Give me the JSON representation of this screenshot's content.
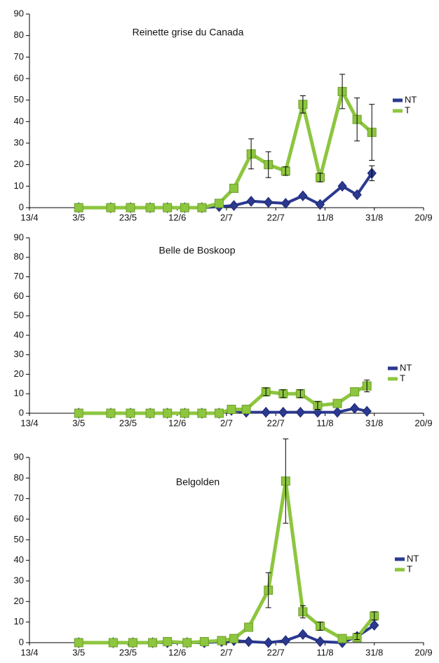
{
  "chart_data": [
    {
      "type": "line",
      "title": "Reinette grise du Canada",
      "x": [
        "3/5",
        "16/5",
        "24/5",
        "1/6",
        "8/6",
        "15/6",
        "22/6",
        "29/6",
        "5/7",
        "12/7",
        "19/7",
        "26/7",
        "2/8",
        "9/8",
        "18/8",
        "24/8",
        "30/8"
      ],
      "series": [
        {
          "name": "NT",
          "color": "#2b3990",
          "values": [
            0,
            0,
            0,
            0,
            0,
            0,
            0,
            0.5,
            1,
            3,
            2.5,
            2,
            5.5,
            1.5,
            10,
            6,
            16
          ],
          "errors": [
            null,
            null,
            null,
            null,
            null,
            null,
            null,
            null,
            null,
            null,
            null,
            null,
            null,
            null,
            null,
            null,
            3.5
          ]
        },
        {
          "name": "T",
          "color": "#8dc63f",
          "values": [
            0,
            0,
            0,
            0,
            0,
            0,
            0,
            2,
            9,
            25,
            20,
            17,
            48,
            14,
            54,
            41,
            35
          ],
          "errors": [
            null,
            null,
            null,
            null,
            null,
            null,
            null,
            null,
            null,
            7,
            6,
            2,
            4,
            2,
            8,
            10,
            13
          ]
        }
      ],
      "xlim": [
        "13/4",
        "20/9"
      ],
      "xticks": [
        "13/4",
        "3/5",
        "23/5",
        "12/6",
        "2/7",
        "22/7",
        "11/8",
        "31/8",
        "20/9"
      ],
      "ylim": [
        0,
        90
      ],
      "yticks": [
        0,
        10,
        20,
        30,
        40,
        50,
        60,
        70,
        80,
        90
      ],
      "legend": "right"
    },
    {
      "type": "line",
      "title": "Belle de Boskoop",
      "x": [
        "3/5",
        "16/5",
        "24/5",
        "1/6",
        "8/6",
        "15/6",
        "22/6",
        "29/6",
        "4/7",
        "10/7",
        "18/7",
        "25/7",
        "1/8",
        "8/8",
        "16/8",
        "23/8",
        "28/8"
      ],
      "series": [
        {
          "name": "NT",
          "color": "#2b3990",
          "values": [
            0,
            0,
            0,
            0,
            0,
            0,
            0,
            0,
            1.5,
            0.5,
            0.5,
            0.5,
            0.5,
            0.5,
            0.5,
            2.5,
            1
          ],
          "errors": [
            null,
            null,
            null,
            null,
            null,
            null,
            null,
            null,
            null,
            null,
            null,
            null,
            null,
            null,
            null,
            null,
            null
          ]
        },
        {
          "name": "T",
          "color": "#8dc63f",
          "values": [
            0,
            0,
            0,
            0,
            0,
            0,
            0,
            0,
            2,
            2,
            11,
            10,
            10,
            4,
            5,
            11,
            14
          ],
          "errors": [
            null,
            null,
            null,
            null,
            null,
            null,
            null,
            null,
            null,
            null,
            2,
            2,
            2,
            2,
            null,
            null,
            3
          ]
        }
      ],
      "xlim": [
        "13/4",
        "20/9"
      ],
      "xticks": [
        "13/4",
        "3/5",
        "23/5",
        "12/6",
        "2/7",
        "22/7",
        "11/8",
        "31/8",
        "20/9"
      ],
      "ylim": [
        0,
        90
      ],
      "yticks": [
        0,
        10,
        20,
        30,
        40,
        50,
        60,
        70,
        80,
        90
      ],
      "legend": "right"
    },
    {
      "type": "line",
      "title": "Belgolden",
      "x": [
        "3/5",
        "17/5",
        "25/5",
        "2/6",
        "8/6",
        "16/6",
        "23/6",
        "30/6",
        "5/7",
        "11/7",
        "19/7",
        "26/7",
        "2/8",
        "9/8",
        "18/8",
        "24/8",
        "31/8"
      ],
      "series": [
        {
          "name": "NT",
          "color": "#2b3990",
          "values": [
            0,
            0,
            0,
            0,
            0,
            0,
            0,
            0.5,
            1,
            0.5,
            0,
            1,
            4,
            0.5,
            0,
            3,
            8.5
          ],
          "errors": [
            null,
            null,
            null,
            null,
            null,
            null,
            null,
            null,
            null,
            null,
            null,
            null,
            null,
            null,
            null,
            1.5,
            null
          ]
        },
        {
          "name": "T",
          "color": "#8dc63f",
          "values": [
            0,
            0,
            0,
            0,
            0.5,
            0,
            0.5,
            1,
            2,
            7.5,
            25.5,
            78.5,
            15,
            8,
            2,
            2.5,
            13
          ],
          "errors": [
            null,
            null,
            null,
            null,
            null,
            null,
            null,
            null,
            null,
            null,
            8.5,
            20.5,
            3,
            2,
            null,
            null,
            2
          ]
        }
      ],
      "xlim": [
        "13/4",
        "20/9"
      ],
      "xticks": [
        "13/4",
        "3/5",
        "23/5",
        "12/6",
        "2/7",
        "22/7",
        "11/8",
        "31/8",
        "20/9"
      ],
      "ylim": [
        0,
        90
      ],
      "yticks": [
        0,
        10,
        20,
        30,
        40,
        50,
        60,
        70,
        80,
        90
      ],
      "legend": "right"
    }
  ]
}
